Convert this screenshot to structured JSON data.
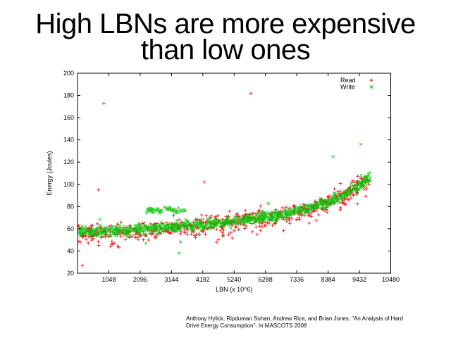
{
  "slide": {
    "title_line1": "High LBNs are more expensive",
    "title_line2": "than low ones",
    "citation_line1": "Anthony Hylick, Ripduman Sohan, Andrew Rice, and Brian Jones, \"An Analysis of Hard",
    "citation_line2": "Drive Energy Consumption\". In MASCOTS 2008"
  },
  "chart_data": {
    "type": "scatter",
    "title": "",
    "xlabel": "LBN (x 10^6)",
    "ylabel": "Energy (Joules)",
    "xlim": [
      0,
      10480
    ],
    "ylim": [
      20,
      200
    ],
    "x_ticks": [
      1048,
      2096,
      3144,
      4192,
      5240,
      6288,
      7336,
      8384,
      9432,
      10480
    ],
    "y_ticks": [
      20,
      40,
      60,
      80,
      100,
      120,
      140,
      160,
      180,
      200
    ],
    "grid": false,
    "legend_position": "top-right-inside",
    "legend": [
      {
        "label": "Read",
        "marker": "+",
        "color": "#e00000"
      },
      {
        "label": "Write",
        "marker": "x",
        "color": "#00c400"
      }
    ],
    "series": [
      {
        "name": "Read",
        "marker": "+",
        "color": "#e00000",
        "opacity": 0.85,
        "n_points": 620,
        "x_range": [
          30,
          9810
        ],
        "trend": [
          [
            0,
            55.5
          ],
          [
            1000,
            56.5
          ],
          [
            2000,
            58
          ],
          [
            3000,
            60
          ],
          [
            4000,
            62.5
          ],
          [
            5000,
            65
          ],
          [
            6000,
            68.5
          ],
          [
            7000,
            73
          ],
          [
            7800,
            78
          ],
          [
            8400,
            84
          ],
          [
            9000,
            91
          ],
          [
            9300,
            96
          ],
          [
            9600,
            103
          ],
          [
            9820,
            109
          ]
        ],
        "noise_sd": 4.0,
        "low_straggler_rate": 0.1,
        "low_straggler_drop": [
          3,
          12
        ],
        "outliers": [
          [
            170,
            27
          ],
          [
            700,
            95
          ],
          [
            880,
            173
          ],
          [
            1100,
            44
          ],
          [
            1160,
            46
          ],
          [
            4240,
            102
          ],
          [
            5800,
            182
          ]
        ]
      },
      {
        "name": "Write",
        "marker": "x",
        "color": "#00c400",
        "opacity": 0.85,
        "n_points": 900,
        "x_range": [
          30,
          9810
        ],
        "trend": [
          [
            0,
            57
          ],
          [
            1000,
            58
          ],
          [
            2000,
            59.5
          ],
          [
            3000,
            61.5
          ],
          [
            4000,
            63.5
          ],
          [
            5000,
            66
          ],
          [
            6000,
            69
          ],
          [
            7000,
            73.5
          ],
          [
            7800,
            78.5
          ],
          [
            8400,
            84
          ],
          [
            9000,
            91.5
          ],
          [
            9300,
            96.5
          ],
          [
            9600,
            103
          ],
          [
            9820,
            109
          ]
        ],
        "noise_sd": 2.2,
        "wide_rate": 0.05,
        "wide_sd": 6,
        "extra_band": {
          "x_range": [
            2300,
            3600
          ],
          "y": 77,
          "n": 60,
          "sd": 1.3
        },
        "outliers": [
          [
            2290,
            47
          ],
          [
            3400,
            38
          ],
          [
            8550,
            125
          ],
          [
            9480,
            136
          ]
        ]
      }
    ]
  }
}
